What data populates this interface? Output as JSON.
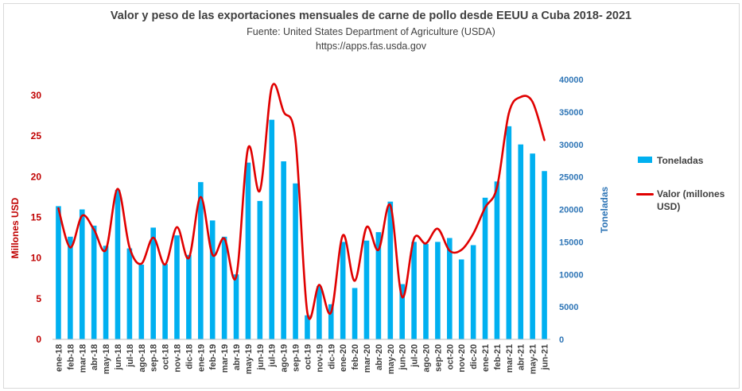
{
  "chart_data": {
    "type": "bar",
    "title": "Valor y peso de las exportaciones mensuales de carne de pollo desde EEUU a Cuba 2018- 2021",
    "subtitle": [
      "Fuente: United States Department of Agriculture (USDA)",
      "https://apps.fas.usda.gov"
    ],
    "ylabel": "Millones USD",
    "ylabel_right": "Toneladas",
    "ylim": [
      0,
      30
    ],
    "ylim_right": [
      0,
      40000
    ],
    "yticks": [
      0,
      5,
      10,
      15,
      20,
      25,
      30
    ],
    "yticks_right": [
      0,
      5000,
      10000,
      15000,
      20000,
      25000,
      30000,
      35000,
      40000
    ],
    "grid": false,
    "legend_position": "right",
    "categories": [
      "ene-18",
      "feb-18",
      "mar-18",
      "abr-18",
      "may-18",
      "jun-18",
      "jul-18",
      "ago-18",
      "sep-18",
      "oct-18",
      "nov-18",
      "dic-18",
      "ene-19",
      "feb-19",
      "mar-19",
      "abr-19",
      "may-19",
      "jun-19",
      "jul-19",
      "ago-19",
      "sep-19",
      "oct-19",
      "nov-19",
      "dic-19",
      "ene-20",
      "feb-20",
      "mar-20",
      "abr-20",
      "may-20",
      "jun-20",
      "jul-20",
      "ago-20",
      "sep-20",
      "oct-20",
      "nov-20",
      "dic-20",
      "ene-21",
      "feb-21",
      "mar-21",
      "abr-21",
      "may-21",
      "jun-21"
    ],
    "series": [
      {
        "name": "Toneladas",
        "type": "bar",
        "axis": "right",
        "color": "#00b0f0",
        "values": [
          20500,
          15800,
          20000,
          17500,
          14400,
          23000,
          14000,
          11500,
          17200,
          11600,
          16000,
          13000,
          24200,
          18300,
          15800,
          10000,
          27200,
          21300,
          33800,
          27400,
          24000,
          3700,
          8200,
          5400,
          15000,
          7900,
          15200,
          16500,
          21200,
          8500,
          15000,
          14700,
          15000,
          15600,
          12300,
          14500,
          21800,
          24300,
          32800,
          30000,
          28600,
          25900
        ]
      },
      {
        "name": "Valor (millones USD)",
        "type": "line",
        "axis": "left",
        "color": "#e00000",
        "values": [
          16.1,
          11.3,
          15.2,
          13.5,
          11.0,
          18.5,
          11.3,
          9.3,
          12.5,
          9.2,
          13.8,
          10.0,
          17.5,
          10.4,
          12.4,
          7.7,
          23.5,
          18.3,
          31.0,
          28.0,
          24.5,
          3.3,
          6.7,
          3.3,
          12.8,
          7.2,
          13.8,
          11.0,
          16.5,
          5.2,
          12.4,
          11.8,
          13.6,
          10.9,
          11.0,
          13.0,
          16.2,
          18.7,
          27.8,
          29.8,
          29.2,
          24.5
        ]
      }
    ]
  }
}
